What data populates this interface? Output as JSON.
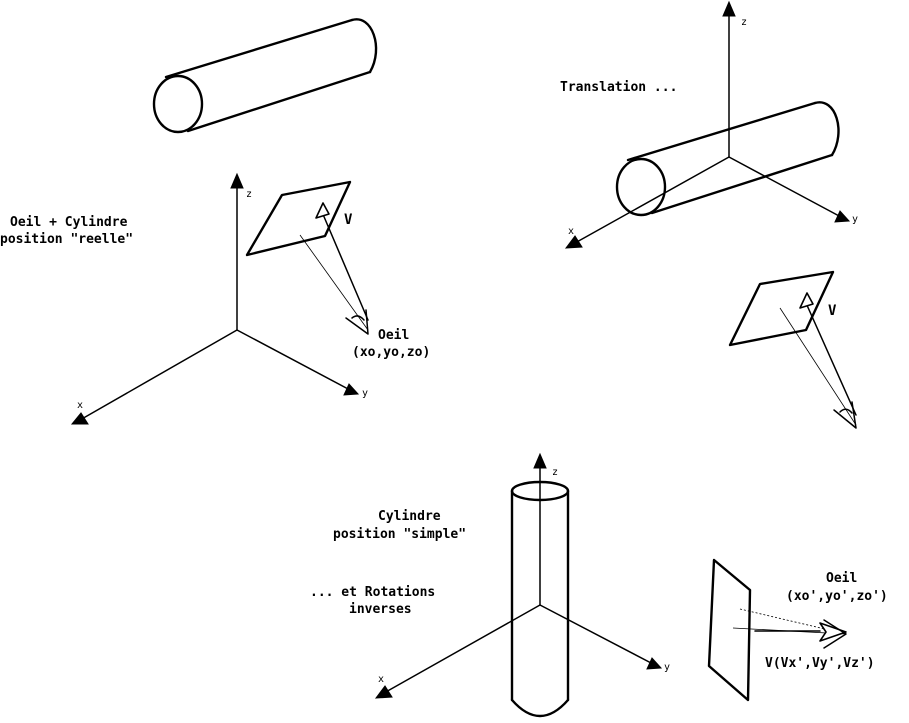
{
  "labels": {
    "real_position": [
      "Oeil + Cylindre",
      "position \"reelle\""
    ],
    "eye_real": [
      "Oeil",
      "(xo,yo,zo)"
    ],
    "translation": "Translation ...",
    "simple_position": [
      "Cylindre",
      "position \"simple\""
    ],
    "rotations": [
      "... et Rotations",
      "inverses"
    ],
    "eye_transformed": [
      "Oeil",
      "(xo',yo',zo')"
    ],
    "view_vector_transformed": "V(Vx',Vy',Vz')",
    "view_vector": "V"
  },
  "axes": {
    "x": "x",
    "y": "y",
    "z": "z"
  }
}
